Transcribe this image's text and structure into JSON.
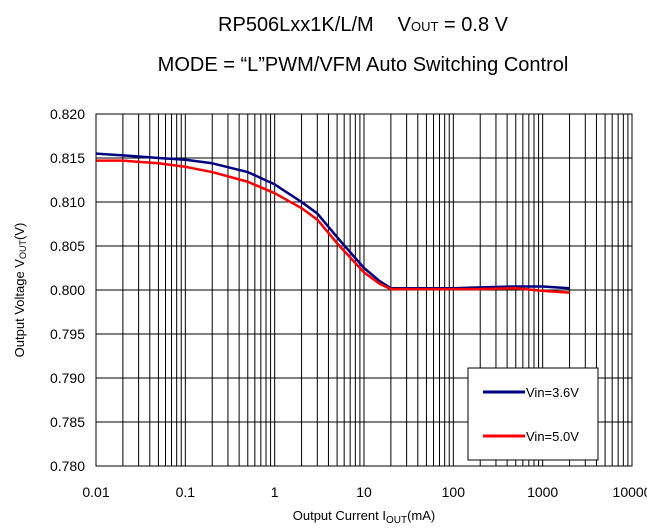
{
  "chart_data": {
    "type": "line",
    "title_line1": {
      "main": "RP506Lxx1K/L/M",
      "vout_prefix": "V",
      "vout_sub": "OUT",
      "vout_value": " = 0.8 V"
    },
    "title_line2": "MODE = “L”PWM/VFM Auto Switching Control",
    "xlabel": {
      "prefix": "Output Current I",
      "sub": "OUT",
      "suffix": "(mA)"
    },
    "ylabel": {
      "prefix": "Output Voltage V",
      "sub": "OUT",
      "suffix": "(V)"
    },
    "x_scale": "log",
    "xlim": [
      0.01,
      10000
    ],
    "ylim": [
      0.78,
      0.82
    ],
    "x_ticks": [
      "0.01",
      "0.1",
      "1",
      "10",
      "100",
      "1000",
      "10000"
    ],
    "y_ticks": [
      "0.780",
      "0.785",
      "0.790",
      "0.795",
      "0.800",
      "0.805",
      "0.810",
      "0.815",
      "0.820"
    ],
    "grid": true,
    "legend_position": "bottom-right",
    "series": [
      {
        "name": "Vin=3.6V",
        "color": "#000080",
        "points": [
          [
            0.01,
            0.8155
          ],
          [
            0.02,
            0.8153
          ],
          [
            0.05,
            0.815
          ],
          [
            0.1,
            0.8148
          ],
          [
            0.2,
            0.8144
          ],
          [
            0.5,
            0.8134
          ],
          [
            1,
            0.812
          ],
          [
            2,
            0.81
          ],
          [
            3,
            0.8087
          ],
          [
            5,
            0.806
          ],
          [
            10,
            0.8025
          ],
          [
            15,
            0.801
          ],
          [
            20,
            0.8002
          ],
          [
            50,
            0.8002
          ],
          [
            100,
            0.8002
          ],
          [
            200,
            0.8003
          ],
          [
            500,
            0.8004
          ],
          [
            1000,
            0.8004
          ],
          [
            2000,
            0.8002
          ]
        ]
      },
      {
        "name": "Vin=5.0V",
        "color": "#ff0000",
        "points": [
          [
            0.01,
            0.8147
          ],
          [
            0.02,
            0.8147
          ],
          [
            0.05,
            0.8144
          ],
          [
            0.1,
            0.814
          ],
          [
            0.2,
            0.8134
          ],
          [
            0.5,
            0.8123
          ],
          [
            1,
            0.811
          ],
          [
            2,
            0.8093
          ],
          [
            3,
            0.808
          ],
          [
            5,
            0.8053
          ],
          [
            10,
            0.802
          ],
          [
            15,
            0.8007
          ],
          [
            20,
            0.8001
          ],
          [
            50,
            0.8001
          ],
          [
            100,
            0.8001
          ],
          [
            200,
            0.8001
          ],
          [
            500,
            0.8002
          ],
          [
            1000,
            0.7999
          ],
          [
            2000,
            0.7997
          ]
        ]
      }
    ]
  }
}
